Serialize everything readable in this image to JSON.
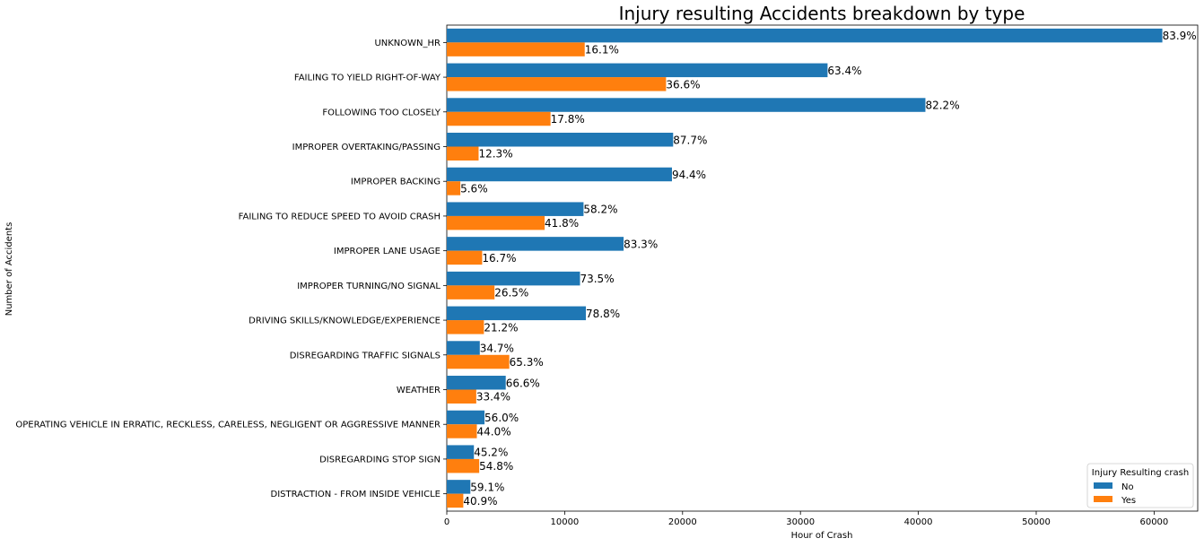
{
  "chart_data": {
    "type": "bar",
    "orientation": "horizontal",
    "title": "Injury resulting Accidents breakdown by type",
    "xlabel": "Hour of Crash",
    "ylabel": "Number of Accidents",
    "xlim": [
      0,
      63700
    ],
    "xticks": [
      0,
      10000,
      20000,
      30000,
      40000,
      50000,
      60000
    ],
    "grid": false,
    "legend": {
      "title": "Injury Resulting crash",
      "placement": "bottom-right"
    },
    "categories": [
      "UNKNOWN_HR",
      "FAILING TO YIELD RIGHT-OF-WAY",
      "FOLLOWING TOO CLOSELY",
      "IMPROPER OVERTAKING/PASSING",
      "IMPROPER BACKING",
      "FAILING TO REDUCE SPEED TO AVOID CRASH",
      "IMPROPER LANE USAGE",
      "IMPROPER TURNING/NO SIGNAL",
      "DRIVING SKILLS/KNOWLEDGE/EXPERIENCE",
      "DISREGARDING TRAFFIC SIGNALS",
      "WEATHER",
      "OPERATING VEHICLE IN ERRATIC, RECKLESS, CARELESS, NEGLIGENT OR AGGRESSIVE MANNER",
      "DISREGARDING STOP SIGN",
      "DISTRACTION - FROM INSIDE VEHICLE"
    ],
    "series": [
      {
        "name": "No",
        "color": "#1f77b4",
        "values": [
          60700,
          32300,
          40600,
          19200,
          19100,
          11600,
          15000,
          11300,
          11800,
          2800,
          5000,
          3200,
          2300,
          2000
        ],
        "labels": [
          "83.9%",
          "63.4%",
          "82.2%",
          "87.7%",
          "94.4%",
          "58.2%",
          "83.3%",
          "73.5%",
          "78.8%",
          "34.7%",
          "66.6%",
          "56.0%",
          "45.2%",
          "59.1%"
        ]
      },
      {
        "name": "Yes",
        "color": "#ff7f0e",
        "values": [
          11700,
          18600,
          8800,
          2700,
          1150,
          8300,
          3000,
          4050,
          3150,
          5300,
          2500,
          2550,
          2750,
          1400
        ],
        "labels": [
          "16.1%",
          "36.6%",
          "17.8%",
          "12.3%",
          "5.6%",
          "41.8%",
          "16.7%",
          "26.5%",
          "21.2%",
          "65.3%",
          "33.4%",
          "44.0%",
          "54.8%",
          "40.9%"
        ]
      }
    ]
  }
}
